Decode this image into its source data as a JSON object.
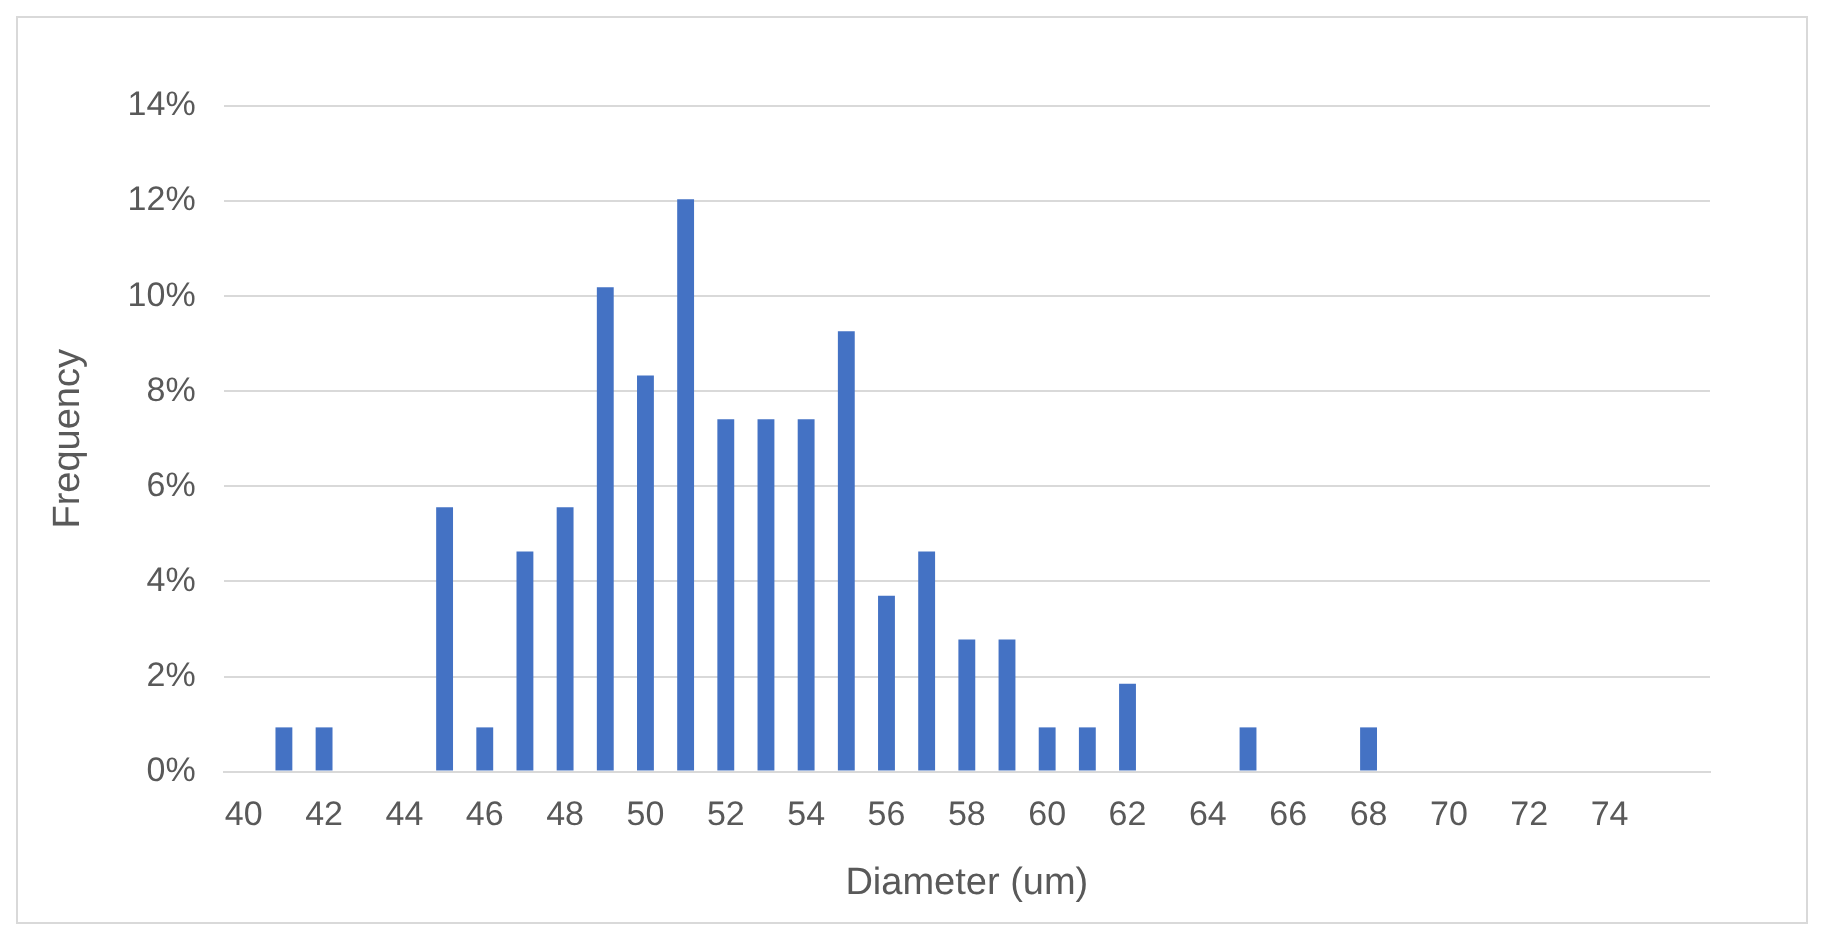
{
  "chart_data": {
    "type": "bar",
    "xlabel": "Diameter (um)",
    "ylabel": "Frequency",
    "categories": [
      "40",
      null,
      "42",
      null,
      "44",
      null,
      "46",
      null,
      "48",
      null,
      "50",
      null,
      "52",
      null,
      "54",
      null,
      "56",
      null,
      "58",
      null,
      "60",
      null,
      "62",
      null,
      "64",
      null,
      "66",
      null,
      "68",
      null,
      "70",
      null,
      "72",
      null,
      "74",
      null,
      null
    ],
    "values": [
      0,
      0.93,
      0.93,
      0,
      0,
      5.56,
      0.93,
      4.63,
      5.56,
      10.19,
      8.33,
      12.04,
      7.41,
      7.41,
      7.41,
      9.26,
      3.7,
      4.63,
      2.78,
      2.78,
      0.93,
      0.93,
      1.85,
      0,
      0,
      0.93,
      0,
      0,
      0.93,
      0,
      0,
      0,
      0,
      0,
      0,
      0,
      0
    ],
    "color": "#4472c4",
    "ylim": [
      0,
      14
    ],
    "yticks": [
      {
        "value": 0,
        "label": "0%"
      },
      {
        "value": 2,
        "label": "2%"
      },
      {
        "value": 4,
        "label": "4%"
      },
      {
        "value": 6,
        "label": "6%"
      },
      {
        "value": 8,
        "label": "8%"
      },
      {
        "value": 10,
        "label": "10%"
      },
      {
        "value": 12,
        "label": "12%"
      },
      {
        "value": 14,
        "label": "14%"
      }
    ],
    "grid": "y",
    "legend": false
  }
}
